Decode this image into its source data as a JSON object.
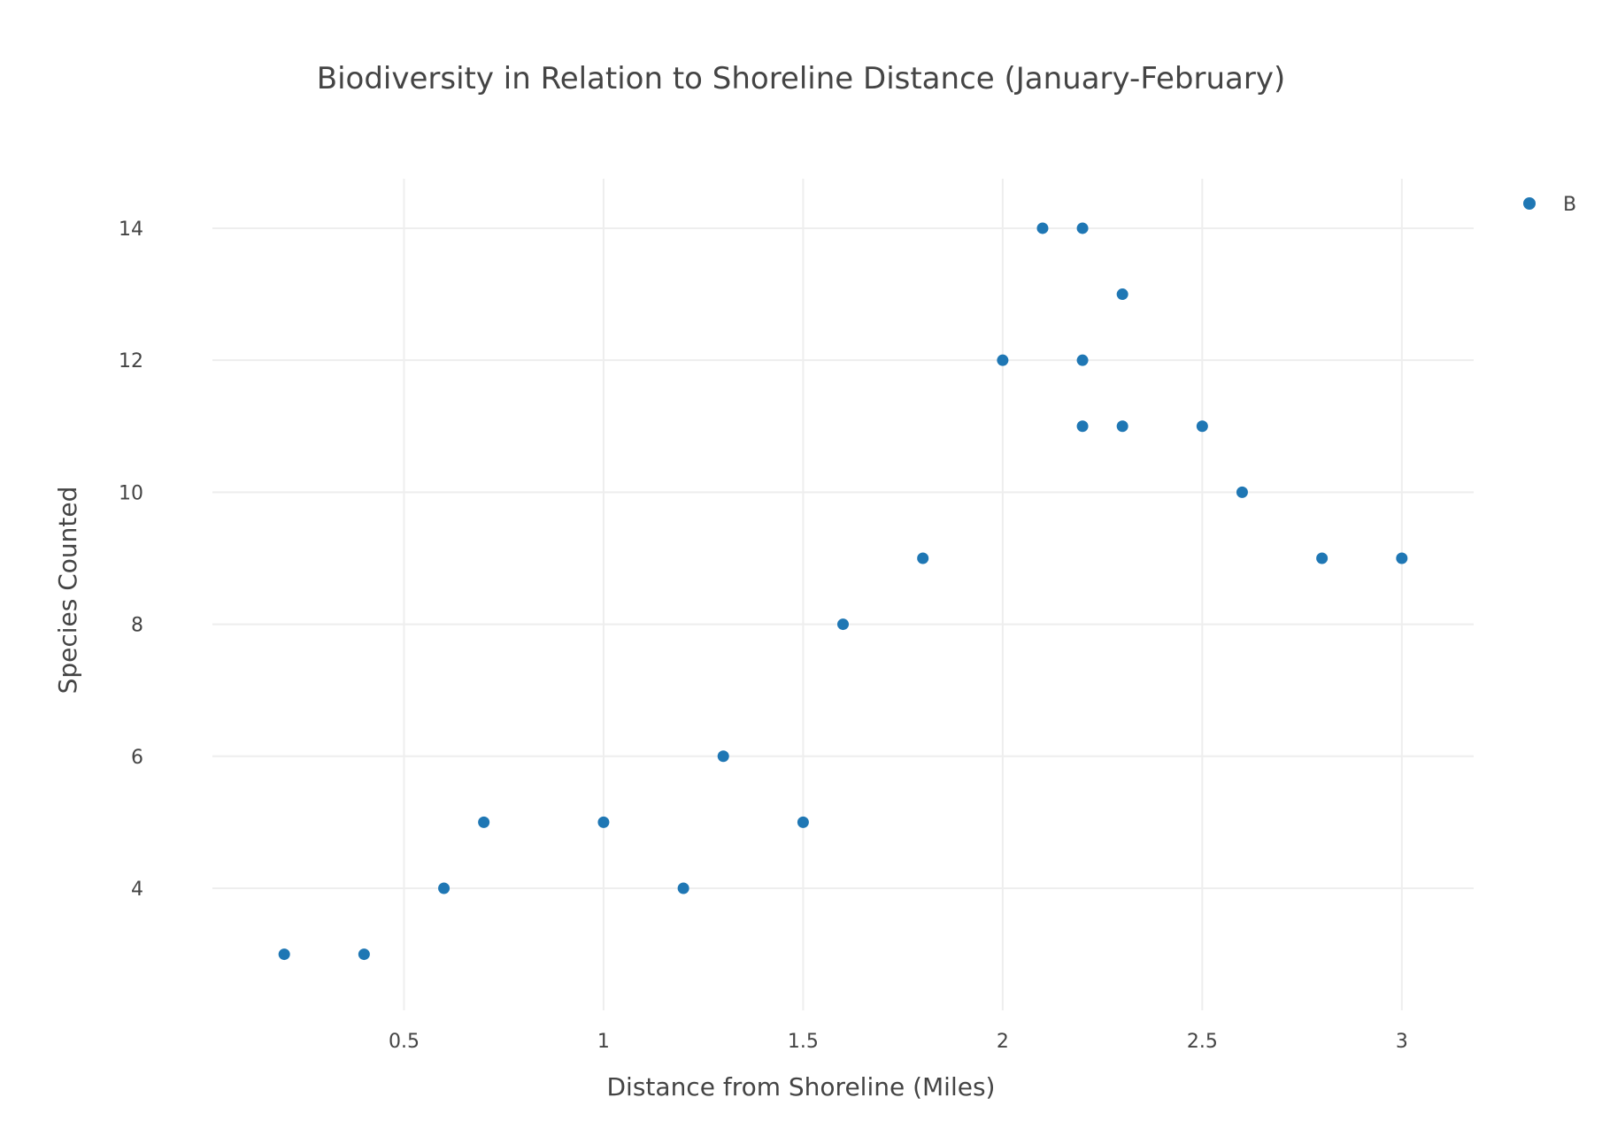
{
  "chart_data": {
    "type": "scatter",
    "title": "Biodiversity in Relation to Shoreline Distance (January-February)",
    "xlabel": "Distance from Shoreline (Miles)",
    "ylabel": "Species Counted",
    "xlim": [
      0.02,
      3.18
    ],
    "ylim": [
      2.15,
      14.75
    ],
    "x_ticks": [
      0.5,
      1,
      1.5,
      2,
      2.5,
      3
    ],
    "x_tick_labels": [
      "0.5",
      "1",
      "1.5",
      "2",
      "2.5",
      "3"
    ],
    "y_ticks": [
      4,
      6,
      8,
      10,
      12,
      14
    ],
    "y_tick_labels": [
      "4",
      "6",
      "8",
      "10",
      "12",
      "14"
    ],
    "grid": true,
    "legend_position": "top-right",
    "series": [
      {
        "name": "B",
        "color": "#1f77b4",
        "points": [
          {
            "x": 0.2,
            "y": 3
          },
          {
            "x": 0.4,
            "y": 3
          },
          {
            "x": 0.6,
            "y": 4
          },
          {
            "x": 0.7,
            "y": 5
          },
          {
            "x": 1.0,
            "y": 5
          },
          {
            "x": 1.2,
            "y": 4
          },
          {
            "x": 1.3,
            "y": 6
          },
          {
            "x": 1.5,
            "y": 5
          },
          {
            "x": 1.6,
            "y": 8
          },
          {
            "x": 1.8,
            "y": 9
          },
          {
            "x": 2.0,
            "y": 12
          },
          {
            "x": 2.1,
            "y": 14
          },
          {
            "x": 2.2,
            "y": 14
          },
          {
            "x": 2.2,
            "y": 12
          },
          {
            "x": 2.2,
            "y": 11
          },
          {
            "x": 2.3,
            "y": 13
          },
          {
            "x": 2.3,
            "y": 11
          },
          {
            "x": 2.5,
            "y": 11
          },
          {
            "x": 2.6,
            "y": 10
          },
          {
            "x": 2.8,
            "y": 9
          },
          {
            "x": 3.0,
            "y": 9
          }
        ]
      }
    ]
  }
}
